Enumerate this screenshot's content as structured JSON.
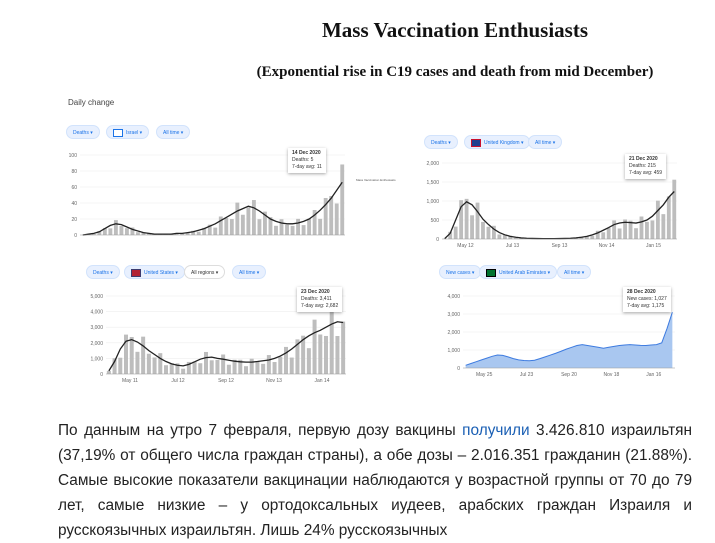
{
  "document": {
    "title": "Mass Vaccination Enthusiasts",
    "subtitle": "(Exponential rise in C19 cases and death from mid December)",
    "daily_change_label": "Daily change",
    "small_caption": "Mass Vaccination Enthusiasts",
    "paragraph": {
      "before_link": "По данным на утро 7 февраля, первую дозу вакцины ",
      "link": "получили",
      "after_link": " 3.426.810 израильтян (37,19% от общего числа граждан страны), а обе дозы – 2.016.351 гражданин (21.88%). Самые высокие показатели вакцинации наблюдаются у возрастной группы от 70 до 79 лет, самые низкие – у ортодоксальных иудеев, арабских граждан Израиля и русскоязычных израильтян. Лишь 24% русскоязычных"
    }
  },
  "colors": {
    "accent": "#1a73e8",
    "line": "#222222",
    "bars": "#bdbdbd",
    "uae_fill": "#a9c7f0",
    "uae_line": "#3d7be0",
    "link": "#1a5fb4"
  },
  "chart_data": [
    {
      "type": "bar",
      "panel": "israel",
      "chips": [
        "Deaths",
        "Israel",
        "All time"
      ],
      "tooltip": {
        "date": "14 Dec 2020",
        "line1": "Deaths: 5",
        "line2": "7-day avg: 11"
      },
      "ylim": [
        0,
        100
      ],
      "yticks": [
        "100",
        "80",
        "60",
        "40",
        "20",
        "0"
      ],
      "xticks": [],
      "series": [
        {
          "values": [
            0,
            1,
            2,
            4,
            8,
            12,
            14,
            13,
            10,
            7,
            5,
            3,
            2,
            1,
            1,
            1,
            1,
            2,
            2,
            3,
            4,
            6,
            8,
            11,
            14,
            18,
            22,
            26,
            30,
            33,
            36,
            34,
            30,
            25,
            20,
            17,
            15,
            14,
            14,
            15,
            17,
            20,
            25,
            31,
            38,
            46,
            56,
            66
          ]
        }
      ]
    },
    {
      "type": "bar",
      "panel": "uk",
      "chips": [
        "Deaths",
        "United Kingdom",
        "All time"
      ],
      "tooltip": {
        "date": "21 Dec 2020",
        "line1": "Deaths: 215",
        "line2": "7-day avg: 459"
      },
      "ylim": [
        0,
        2000
      ],
      "yticks": [
        "2,000",
        "1,500",
        "1,000",
        "500",
        "0"
      ],
      "xticks": [
        "May 12",
        "Jul 13",
        "Sep 13",
        "Nov 14",
        "Jan 15"
      ],
      "series": [
        {
          "values": [
            10,
            150,
            500,
            850,
            980,
            900,
            720,
            520,
            380,
            260,
            170,
            110,
            70,
            45,
            30,
            20,
            15,
            12,
            10,
            10,
            10,
            12,
            15,
            20,
            30,
            45,
            70,
            110,
            160,
            230,
            300,
            380,
            420,
            440,
            430,
            420,
            450,
            500,
            600,
            750,
            900,
            1100,
            1250
          ]
        }
      ]
    },
    {
      "type": "bar",
      "panel": "us",
      "chips": [
        "Deaths",
        "United States",
        "All regions",
        "All time"
      ],
      "tooltip": {
        "date": "23 Dec 2020",
        "line1": "Deaths: 3,411",
        "line2": "7-day avg: 2,682"
      },
      "ylim": [
        0,
        5000
      ],
      "yticks": [
        "5,000",
        "4,000",
        "3,000",
        "2,000",
        "1,000",
        "0"
      ],
      "xticks": [
        "May 11",
        "Jul 12",
        "Sep 12",
        "Nov 13",
        "Jan 14"
      ],
      "series": [
        {
          "values": [
            200,
            800,
            1600,
            2100,
            2200,
            2050,
            1800,
            1500,
            1250,
            1000,
            800,
            650,
            560,
            520,
            620,
            780,
            950,
            1050,
            1080,
            1000,
            950,
            880,
            820,
            780,
            760,
            760,
            800,
            850,
            900,
            1000,
            1150,
            1350,
            1600,
            1900,
            2200,
            2450,
            2650,
            2800,
            3000,
            3200,
            3350,
            3300
          ]
        }
      ]
    },
    {
      "type": "area",
      "panel": "uae",
      "chips": [
        "New cases",
        "United Arab Emirates",
        "All time"
      ],
      "tooltip": {
        "date": "28 Dec 2020",
        "line1": "New cases: 1,027",
        "line2": "7-day avg: 1,175"
      },
      "ylim": [
        0,
        4000
      ],
      "yticks": [
        "4,000",
        "3,000",
        "2,000",
        "1,000",
        "0"
      ],
      "xticks": [
        "May 25",
        "Jul 23",
        "Sep 20",
        "Nov 18",
        "Jan 16"
      ],
      "series": [
        {
          "values": [
            150,
            250,
            350,
            450,
            550,
            650,
            720,
            700,
            620,
            520,
            450,
            420,
            400,
            430,
            520,
            620,
            720,
            820,
            930,
            1050,
            1150,
            1250,
            1300,
            1250,
            1200,
            1150,
            1100,
            1150,
            1200,
            1250,
            1280,
            1300,
            1280,
            1260,
            1250,
            1280,
            1300,
            1400,
            2200,
            3100
          ]
        }
      ]
    }
  ]
}
